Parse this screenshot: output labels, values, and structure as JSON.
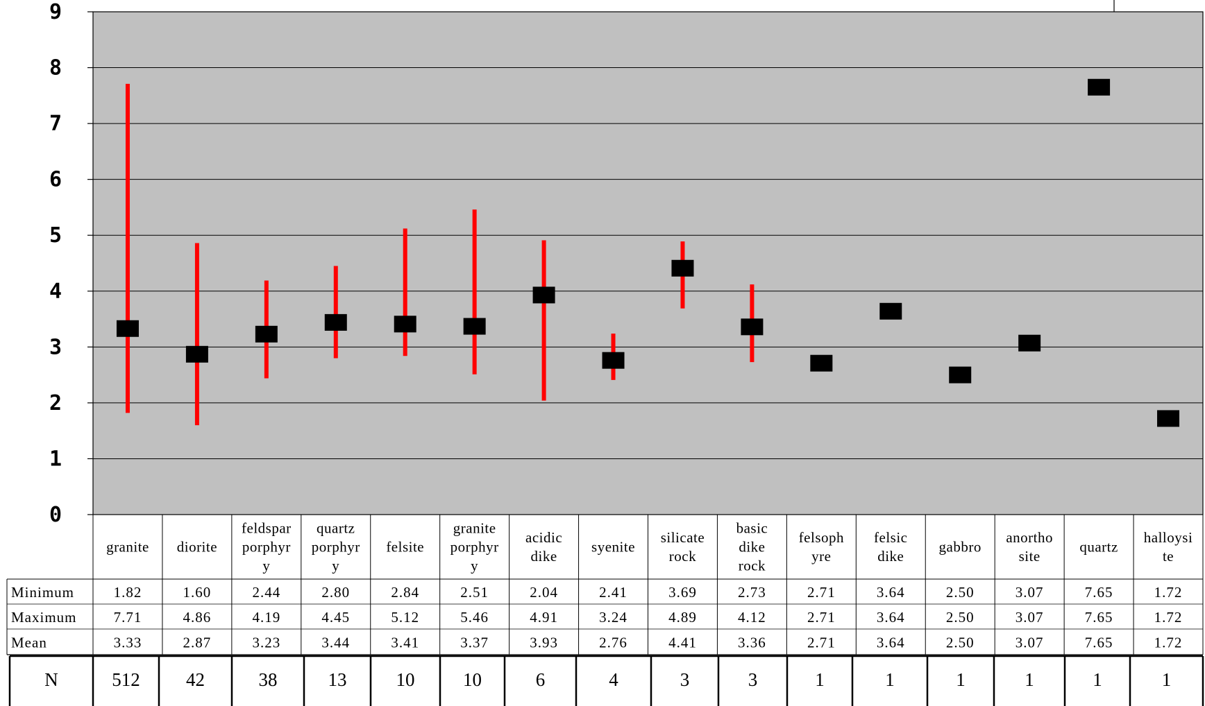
{
  "chart_data": {
    "type": "scatter",
    "title": "",
    "xlabel": "",
    "ylabel": "",
    "ylim": [
      0,
      9
    ],
    "yticks": [
      "0",
      "1",
      "2",
      "3",
      "4",
      "5",
      "6",
      "7",
      "8",
      "9"
    ],
    "grid": true,
    "plot_background": "#c0c0c0",
    "range_color": "#ff0000",
    "mean_marker_color": "#000000",
    "categories": [
      [
        "granite"
      ],
      [
        "diorite"
      ],
      [
        "feldspar",
        "porphyr",
        "y"
      ],
      [
        "quartz",
        "porphyr",
        "y"
      ],
      [
        "felsite"
      ],
      [
        "granite",
        "porphyr",
        "y"
      ],
      [
        "acidic",
        "dike"
      ],
      [
        "syenite"
      ],
      [
        "silicate",
        "rock"
      ],
      [
        "basic",
        "dike",
        "rock"
      ],
      [
        "felsoph",
        "yre"
      ],
      [
        "felsic",
        "dike"
      ],
      [
        "gabbro"
      ],
      [
        "anortho",
        "site"
      ],
      [
        "quartz"
      ],
      [
        "halloysi",
        "te"
      ]
    ],
    "row_labels": {
      "min": "Minimum",
      "max": "Maximum",
      "mean": "Mean",
      "n": "N"
    },
    "min": [
      "1.82",
      "1.60",
      "2.44",
      "2.80",
      "2.84",
      "2.51",
      "2.04",
      "2.41",
      "3.69",
      "2.73",
      "2.71",
      "3.64",
      "2.50",
      "3.07",
      "7.65",
      "1.72"
    ],
    "max": [
      "7.71",
      "4.86",
      "4.19",
      "4.45",
      "5.12",
      "5.46",
      "4.91",
      "3.24",
      "4.89",
      "4.12",
      "2.71",
      "3.64",
      "2.50",
      "3.07",
      "7.65",
      "1.72"
    ],
    "mean": [
      "3.33",
      "2.87",
      "3.23",
      "3.44",
      "3.41",
      "3.37",
      "3.93",
      "2.76",
      "4.41",
      "3.36",
      "2.71",
      "3.64",
      "2.50",
      "3.07",
      "7.65",
      "1.72"
    ],
    "n": [
      "512",
      "42",
      "38",
      "13",
      "10",
      "10",
      "6",
      "4",
      "3",
      "3",
      "1",
      "1",
      "1",
      "1",
      "1",
      "1"
    ]
  }
}
